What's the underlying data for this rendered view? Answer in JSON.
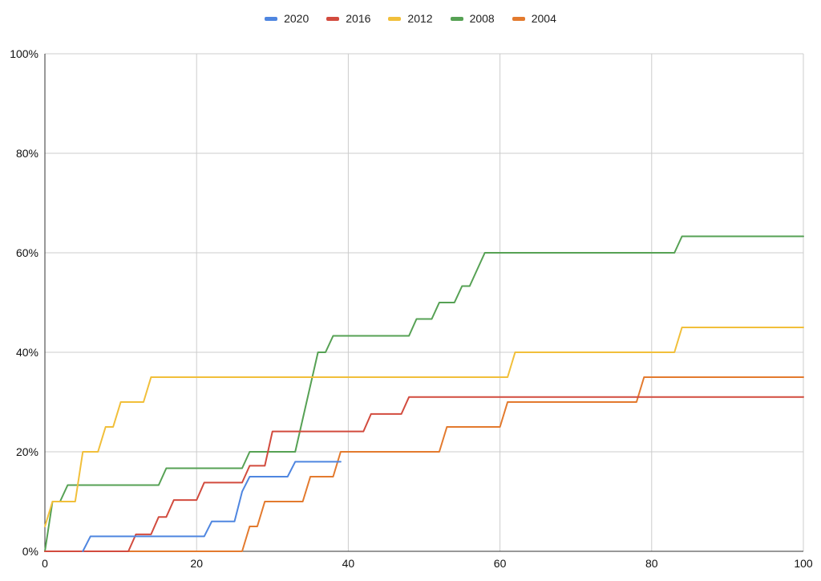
{
  "chart_data": {
    "type": "line",
    "title": "",
    "xlabel": "",
    "ylabel": "",
    "xlim": [
      0,
      100
    ],
    "ylim": [
      0,
      100
    ],
    "x_ticks": [
      "0",
      "20",
      "40",
      "60",
      "80",
      "100"
    ],
    "y_ticks": [
      "0%",
      "20%",
      "40%",
      "60%",
      "80%",
      "100%"
    ],
    "grid": true,
    "legend_position": "top-center",
    "series": [
      {
        "name": "2020",
        "color": "#4f86e0",
        "points": [
          [
            5,
            0
          ],
          [
            6,
            3
          ],
          [
            21,
            3
          ],
          [
            22,
            6
          ],
          [
            25,
            6
          ],
          [
            26,
            12
          ],
          [
            27,
            15
          ],
          [
            32,
            15
          ],
          [
            33,
            18
          ],
          [
            39,
            18
          ]
        ]
      },
      {
        "name": "2016",
        "color": "#d24b3e",
        "points": [
          [
            0,
            0
          ],
          [
            11,
            0
          ],
          [
            12,
            3.4
          ],
          [
            14,
            3.4
          ],
          [
            15,
            6.9
          ],
          [
            16,
            6.9
          ],
          [
            17,
            10.3
          ],
          [
            20,
            10.3
          ],
          [
            21,
            13.8
          ],
          [
            26,
            13.8
          ],
          [
            27,
            17.2
          ],
          [
            29,
            17.2
          ],
          [
            30,
            24.1
          ],
          [
            42,
            24.1
          ],
          [
            43,
            27.6
          ],
          [
            47,
            27.6
          ],
          [
            48,
            31
          ],
          [
            100,
            31
          ]
        ]
      },
      {
        "name": "2012",
        "color": "#f1bf3a",
        "points": [
          [
            0,
            5
          ],
          [
            1,
            10
          ],
          [
            4,
            10
          ],
          [
            5,
            20
          ],
          [
            7,
            20
          ],
          [
            8,
            25
          ],
          [
            9,
            25
          ],
          [
            10,
            30
          ],
          [
            13,
            30
          ],
          [
            14,
            35
          ],
          [
            61,
            35
          ],
          [
            62,
            40
          ],
          [
            83,
            40
          ],
          [
            84,
            45
          ],
          [
            100,
            45
          ]
        ]
      },
      {
        "name": "2008",
        "color": "#56a154",
        "points": [
          [
            0,
            0
          ],
          [
            1,
            10
          ],
          [
            2,
            10
          ],
          [
            3,
            13.3
          ],
          [
            15,
            13.3
          ],
          [
            16,
            16.7
          ],
          [
            26,
            16.7
          ],
          [
            27,
            20
          ],
          [
            33,
            20
          ],
          [
            36,
            40
          ],
          [
            37,
            40
          ],
          [
            38,
            43.3
          ],
          [
            48,
            43.3
          ],
          [
            49,
            46.7
          ],
          [
            51,
            46.7
          ],
          [
            52,
            50
          ],
          [
            54,
            50
          ],
          [
            55,
            53.3
          ],
          [
            56,
            53.3
          ],
          [
            58,
            60
          ],
          [
            83,
            60
          ],
          [
            84,
            63.3
          ],
          [
            100,
            63.3
          ]
        ]
      },
      {
        "name": "2004",
        "color": "#e37a2e",
        "points": [
          [
            0,
            0
          ],
          [
            26,
            0
          ],
          [
            27,
            5
          ],
          [
            28,
            5
          ],
          [
            29,
            10
          ],
          [
            34,
            10
          ],
          [
            35,
            15
          ],
          [
            38,
            15
          ],
          [
            39,
            20
          ],
          [
            52,
            20
          ],
          [
            53,
            25
          ],
          [
            60,
            25
          ],
          [
            61,
            30
          ],
          [
            78,
            30
          ],
          [
            79,
            35
          ],
          [
            100,
            35
          ]
        ]
      }
    ]
  }
}
